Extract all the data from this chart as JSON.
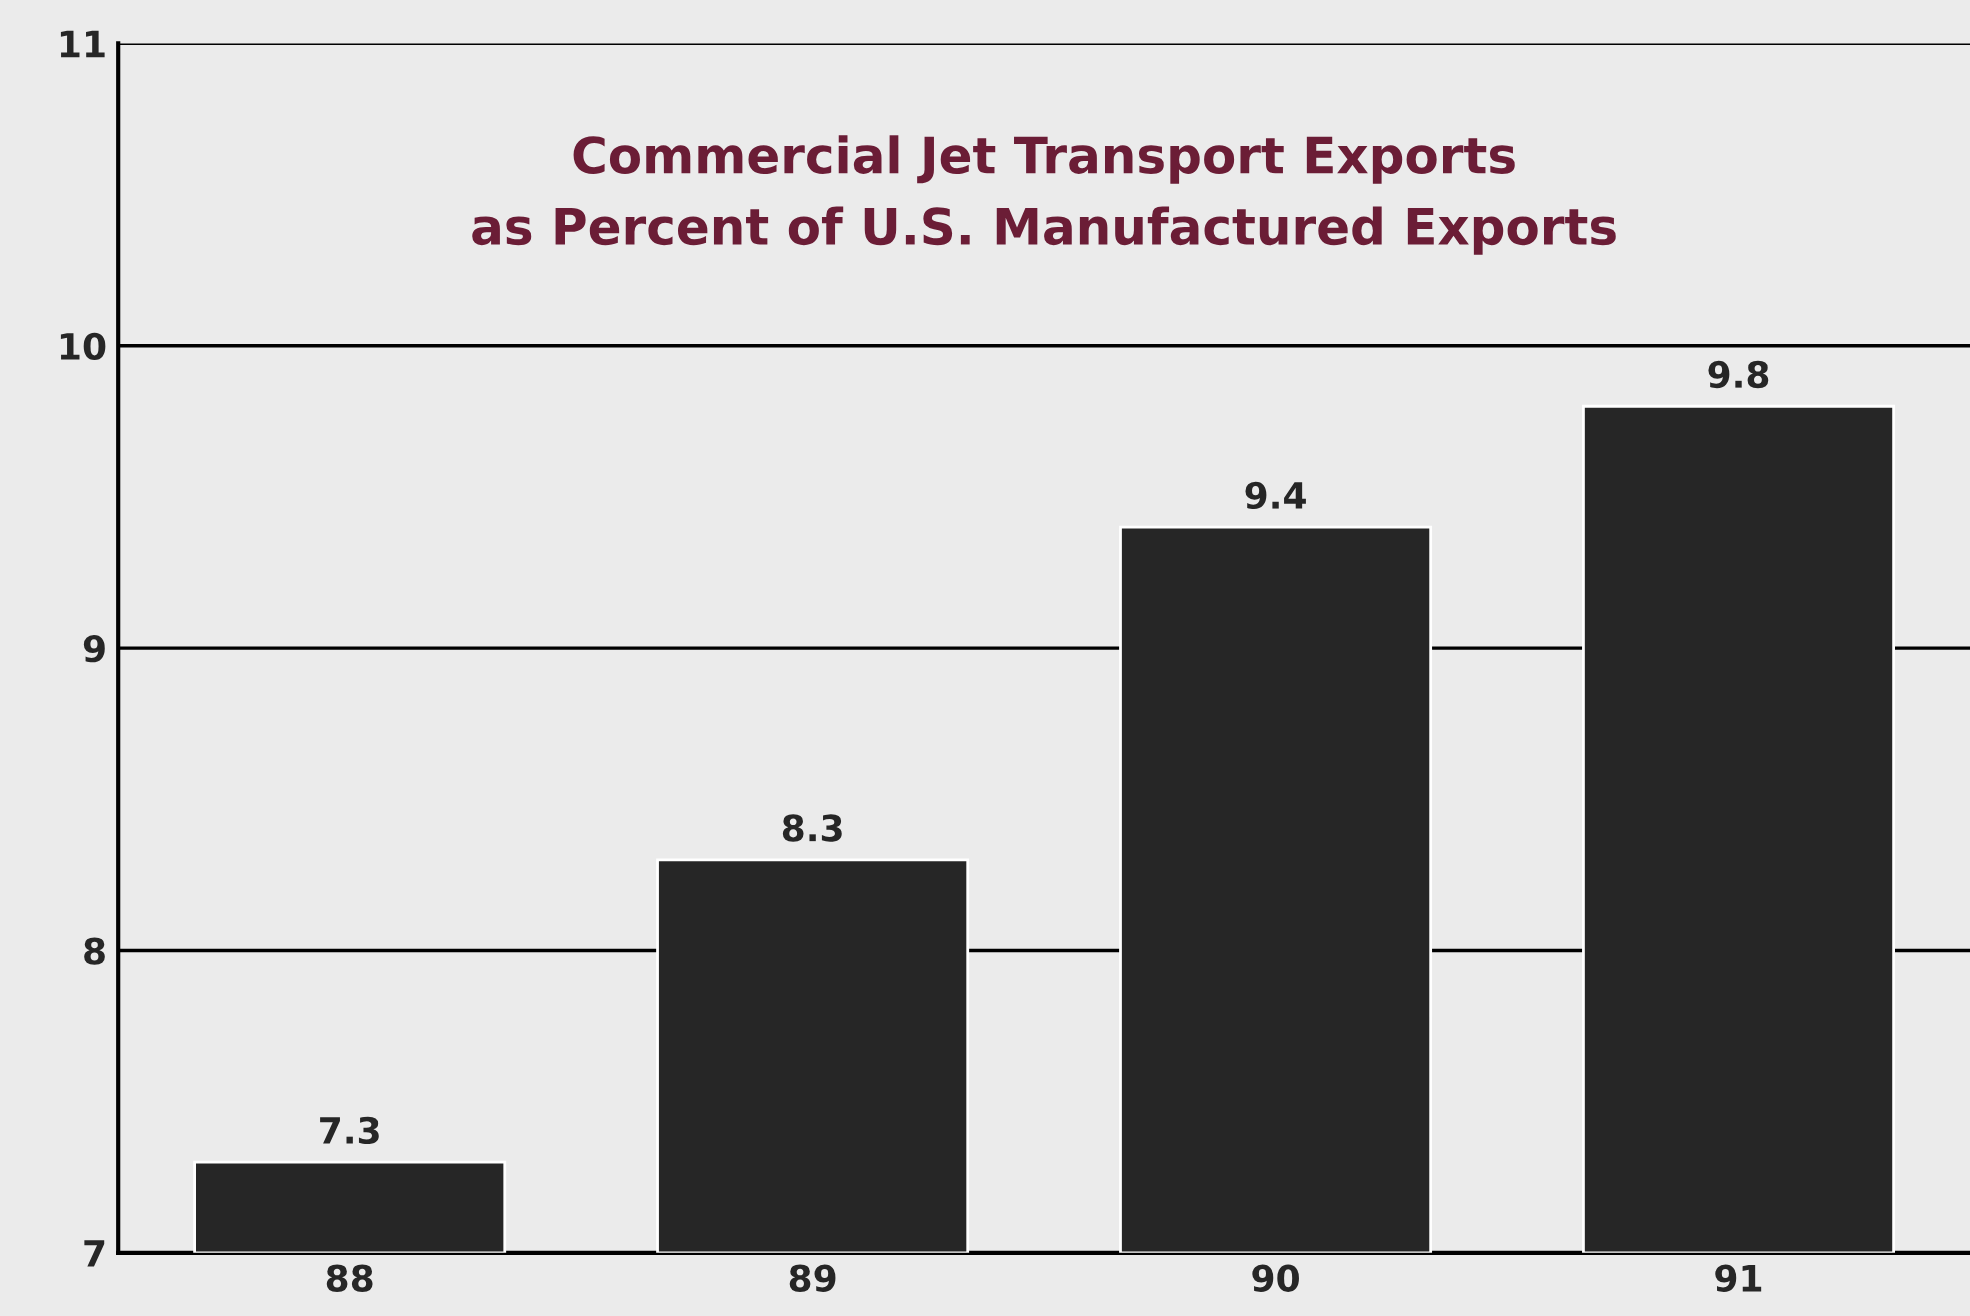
{
  "chart_data": {
    "type": "bar",
    "title": "Commercial Jet Transport Exports\nas Percent of U.S. Manufactured Exports",
    "categories": [
      "88",
      "89",
      "90",
      "91"
    ],
    "values": [
      7.3,
      8.3,
      9.4,
      9.8
    ],
    "color": "#262626",
    "ylim": [
      7,
      11
    ],
    "yticks": [
      7,
      8,
      9,
      10,
      11
    ],
    "grid": "y",
    "data_labels": true
  }
}
